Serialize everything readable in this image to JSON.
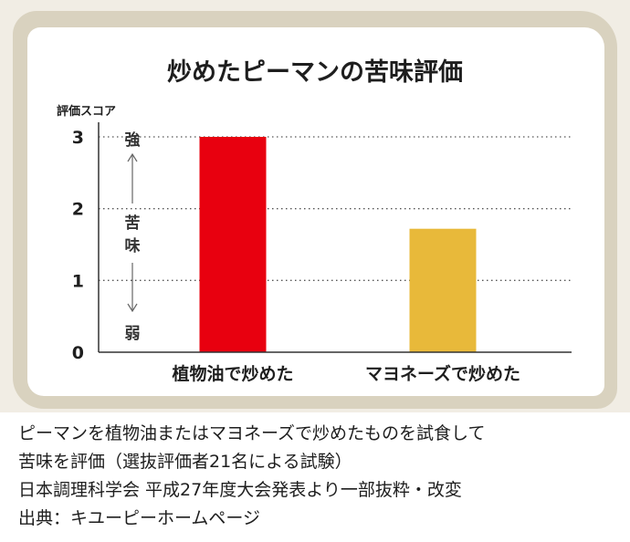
{
  "chart_data": {
    "type": "bar",
    "title": "炒めたピーマンの苦味評価",
    "ylabel": "評価スコア",
    "xlabel": "",
    "ylim": [
      0,
      3
    ],
    "yticks": [
      "0",
      "1",
      "2",
      "3"
    ],
    "categories": [
      "植物油で炒めた",
      "マヨネーズで炒めた"
    ],
    "values": [
      3.0,
      1.72
    ],
    "bar_colors": [
      "#e8000f",
      "#e8b93a"
    ],
    "grid": "dotted-horizontal",
    "scale_annotation": {
      "strong": "強",
      "middle": [
        "苦",
        "味"
      ],
      "weak": "弱"
    }
  },
  "caption": {
    "lines": [
      "ピーマンを植物油またはマヨネーズで炒めたものを試食して",
      "苦味を評価（選抜評価者21名による試験）",
      "日本調理科学会 平成27年度大会発表より一部抜粋・改変",
      "出典：キユーピーホームページ"
    ]
  },
  "colors": {
    "frame": "#d9d2bf",
    "background": "#f1ede4"
  }
}
